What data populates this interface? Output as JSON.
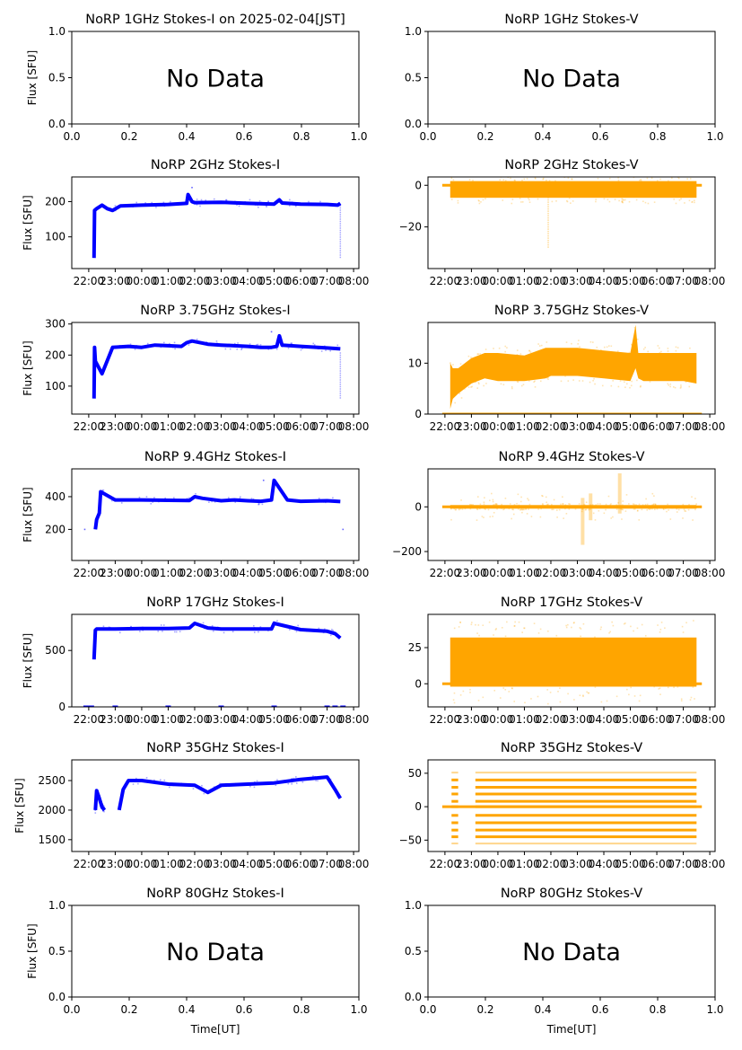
{
  "figure": {
    "title_prefix": "NoRP",
    "date_label": "on 2025-02-04[JST]",
    "ylabel": "Flux [SFU]",
    "xlabel": "Time[UT]",
    "no_data_text": "No Data",
    "colors": {
      "stokes_i": "#0000ff",
      "stokes_v": "#ffa500",
      "axes": "#000000"
    }
  },
  "chart_data": [
    {
      "type": "scatter",
      "id": "1ghz-i",
      "title": "NoRP 1GHz Stokes-I on 2025-02-04[JST]",
      "ylabel": "Flux [SFU]",
      "no_data": true,
      "xlim": [
        0,
        1
      ],
      "ylim": [
        0,
        1
      ],
      "xticks": [
        "0.0",
        "0.2",
        "0.4",
        "0.6",
        "0.8",
        "1.0"
      ],
      "yticks": [
        0,
        0.5,
        1.0
      ],
      "ytick_labels": [
        "0.0",
        "0.5",
        "1.0"
      ]
    },
    {
      "type": "scatter",
      "id": "1ghz-v",
      "title": "NoRP 1GHz Stokes-V",
      "no_data": true,
      "xlim": [
        0,
        1
      ],
      "ylim": [
        0,
        1
      ],
      "xticks": [
        "0.0",
        "0.2",
        "0.4",
        "0.6",
        "0.8",
        "1.0"
      ],
      "yticks": [
        0,
        0.5,
        1.0
      ],
      "ytick_labels": [
        "0.0",
        "0.5",
        "1.0"
      ]
    },
    {
      "type": "scatter",
      "id": "2ghz-i",
      "title": "NoRP 2GHz Stokes-I",
      "ylabel": "Flux [SFU]",
      "stokes": "I",
      "ylim": [
        10,
        270
      ],
      "yticks": [
        100,
        200
      ],
      "ytick_labels": [
        "100",
        "200"
      ],
      "series": [
        {
          "x_hours": [
            22.2,
            22.22,
            22.3,
            22.5,
            22.7,
            22.9,
            23.2,
            24,
            25,
            25.7,
            25.75,
            25.9,
            26,
            27,
            28,
            29,
            29.2,
            29.3,
            30,
            31,
            31.4,
            31.5
          ],
          "y": [
            40,
            175,
            180,
            190,
            180,
            175,
            188,
            190,
            192,
            195,
            220,
            200,
            197,
            198,
            195,
            193,
            205,
            196,
            193,
            192,
            190,
            195
          ]
        }
      ],
      "outliers": [
        {
          "x_hours": 31.5,
          "y_range": [
            40,
            190
          ]
        },
        {
          "x_hours": 25.9,
          "y": 240
        }
      ]
    },
    {
      "type": "scatter",
      "id": "2ghz-v",
      "title": "NoRP 2GHz Stokes-V",
      "stokes": "V",
      "ylim": [
        -40,
        4
      ],
      "yticks": [
        -20,
        0
      ],
      "ytick_labels": [
        "−20",
        "0"
      ],
      "band": {
        "x_start": 22.2,
        "x_end": 31.5,
        "y_low": -6,
        "y_high": 2
      },
      "baseline": {
        "x_start": 21.9,
        "x_end": 31.7,
        "y": 0
      },
      "outliers": [
        {
          "x_hours": 25.9,
          "y_range": [
            -30,
            -6
          ]
        }
      ]
    },
    {
      "type": "scatter",
      "id": "3.75ghz-i",
      "title": "NoRP 3.75GHz Stokes-I",
      "ylabel": "Flux [SFU]",
      "stokes": "I",
      "ylim": [
        10,
        305
      ],
      "yticks": [
        100,
        200,
        300
      ],
      "ytick_labels": [
        "100",
        "200",
        "300"
      ],
      "series": [
        {
          "x_hours": [
            22.2,
            22.22,
            22.25,
            22.5,
            22.9,
            23.5,
            24,
            24.5,
            25,
            25.5,
            25.7,
            25.9,
            26.5,
            27,
            27.5,
            28,
            28.5,
            28.9,
            29.1,
            29.2,
            29.3,
            30,
            31,
            31.5
          ],
          "y": [
            60,
            225,
            180,
            140,
            225,
            228,
            225,
            232,
            230,
            228,
            240,
            245,
            235,
            232,
            230,
            228,
            225,
            225,
            228,
            262,
            232,
            228,
            223,
            220
          ]
        }
      ],
      "outliers": [
        {
          "x_hours": 31.5,
          "y_range": [
            60,
            210
          ]
        },
        {
          "x_hours": 28.9,
          "y": 275
        }
      ]
    },
    {
      "type": "scatter",
      "id": "3.75ghz-v",
      "title": "NoRP 3.75GHz Stokes-V",
      "stokes": "V",
      "ylim": [
        0,
        18
      ],
      "yticks": [
        0,
        10
      ],
      "ytick_labels": [
        "0",
        "10"
      ],
      "band_series": {
        "x_hours": [
          22.2,
          22.3,
          22.5,
          23,
          23.5,
          24,
          25,
          25.8,
          26,
          27,
          28,
          29,
          29.2,
          29.3,
          29.5,
          30,
          31,
          31.5
        ],
        "y_low": [
          1,
          3,
          4,
          6,
          7,
          6.5,
          6.5,
          7,
          7.5,
          7.5,
          7,
          6.5,
          9,
          7,
          6.5,
          6.5,
          6.5,
          6
        ],
        "y_high": [
          10,
          9,
          9,
          11,
          12,
          12,
          11.5,
          13,
          13,
          13,
          12.5,
          12,
          17.5,
          12,
          12,
          12,
          12,
          12
        ]
      },
      "baseline": {
        "x_start": 21.9,
        "x_end": 31.7,
        "y": 0
      }
    },
    {
      "type": "scatter",
      "id": "9.4ghz-i",
      "title": "NoRP 9.4GHz Stokes-I",
      "ylabel": "Flux [SFU]",
      "stokes": "I",
      "ylim": [
        10,
        570
      ],
      "yticks": [
        200,
        400
      ],
      "ytick_labels": [
        "200",
        "400"
      ],
      "series": [
        {
          "x_hours": [
            22.25,
            22.3,
            22.4,
            22.45,
            23,
            24,
            25,
            25.8,
            26,
            26.3,
            27,
            27.5,
            28,
            28.5,
            28.9,
            29,
            29.5,
            30,
            31,
            31.5
          ],
          "y": [
            200,
            260,
            300,
            430,
            380,
            380,
            378,
            376,
            400,
            390,
            375,
            380,
            375,
            372,
            380,
            500,
            380,
            372,
            375,
            370
          ]
        }
      ],
      "outliers": [
        {
          "x_hours": 21.85,
          "y": 200
        },
        {
          "x_hours": 31.6,
          "y": 200
        },
        {
          "x_hours": 28.6,
          "y": 500
        }
      ]
    },
    {
      "type": "scatter",
      "id": "9.4ghz-v",
      "title": "NoRP 9.4GHz Stokes-V",
      "stokes": "V",
      "ylim": [
        -240,
        170
      ],
      "yticks": [
        -200,
        0
      ],
      "ytick_labels": [
        "−200",
        "0"
      ],
      "band": {
        "x_start": 22.2,
        "x_end": 31.5,
        "y_low": -8,
        "y_high": 8
      },
      "baseline": {
        "x_start": 21.9,
        "x_end": 31.7,
        "y": 0
      },
      "bursts": [
        {
          "x_hours": 27.5,
          "y_low": -60,
          "y_high": 60
        },
        {
          "x_hours": 28.6,
          "y_low": -30,
          "y_high": 150
        },
        {
          "x_hours": 27.2,
          "y_low": -170,
          "y_high": 40
        }
      ]
    },
    {
      "type": "scatter",
      "id": "17ghz-i",
      "title": "NoRP 17GHz Stokes-I",
      "ylabel": "Flux [SFU]",
      "stokes": "I",
      "ylim": [
        0,
        820
      ],
      "yticks": [
        0,
        500
      ],
      "ytick_labels": [
        "0",
        "500"
      ],
      "series": [
        {
          "x_hours": [
            22.2,
            22.25,
            22.3,
            23,
            24,
            25,
            25.8,
            26,
            26.5,
            27,
            28,
            28.9,
            29,
            30,
            31,
            31.3,
            31.5
          ],
          "y": [
            420,
            680,
            690,
            690,
            695,
            695,
            700,
            740,
            700,
            690,
            690,
            690,
            740,
            685,
            670,
            650,
            610
          ]
        }
      ],
      "zero_marks_hours": [
        21.9,
        22.1,
        23.0,
        25.0,
        27.0,
        29.0,
        31.0,
        31.3,
        31.6
      ]
    },
    {
      "type": "scatter",
      "id": "17ghz-v",
      "title": "NoRP 17GHz Stokes-V",
      "stokes": "V",
      "ylim": [
        -16,
        48
      ],
      "yticks": [
        0,
        25
      ],
      "ytick_labels": [
        "0",
        "25"
      ],
      "band": {
        "x_start": 22.2,
        "x_end": 31.5,
        "y_low": -2,
        "y_high": 32
      },
      "baseline": {
        "x_start": 21.9,
        "x_end": 31.7,
        "y": 0
      }
    },
    {
      "type": "scatter",
      "id": "35ghz-i",
      "title": "NoRP 35GHz Stokes-I",
      "ylabel": "Flux [SFU]",
      "stokes": "I",
      "ylim": [
        1300,
        2850
      ],
      "yticks": [
        1500,
        2000,
        2500
      ],
      "ytick_labels": [
        "1500",
        "2000",
        "2500"
      ],
      "series": [
        {
          "x_hours": [
            22.25,
            22.3,
            22.4,
            22.5,
            22.6
          ],
          "y": [
            2000,
            2330,
            2200,
            2050,
            2000
          ]
        },
        {
          "x_hours": [
            23.15,
            23.3,
            23.5,
            24,
            25,
            26,
            26.5,
            27,
            28,
            29,
            30,
            31,
            31.3,
            31.5
          ],
          "y": [
            2000,
            2350,
            2500,
            2500,
            2440,
            2420,
            2300,
            2420,
            2440,
            2460,
            2520,
            2560,
            2350,
            2200
          ]
        }
      ]
    },
    {
      "type": "scatter",
      "id": "35ghz-v",
      "title": "NoRP 35GHz Stokes-V",
      "stokes": "V",
      "ylim": [
        -67,
        70
      ],
      "yticks": [
        -50,
        0,
        50
      ],
      "ytick_labels": [
        "−50",
        "0",
        "50"
      ],
      "levels": [
        -55,
        -45,
        -35,
        -24,
        -13,
        0,
        8,
        19,
        29,
        40,
        51
      ],
      "segments": [
        {
          "x_start": 22.25,
          "x_end": 22.5
        },
        {
          "x_start": 23.15,
          "x_end": 31.5
        }
      ],
      "baseline": {
        "x_start": 21.9,
        "x_end": 31.7,
        "y": 0
      }
    },
    {
      "type": "scatter",
      "id": "80ghz-i",
      "title": "NoRP 80GHz Stokes-I",
      "ylabel": "Flux [SFU]",
      "xlabel": "Time[UT]",
      "no_data": true,
      "xlim": [
        0,
        1
      ],
      "ylim": [
        0,
        1
      ],
      "xticks": [
        "0.0",
        "0.2",
        "0.4",
        "0.6",
        "0.8",
        "1.0"
      ],
      "yticks": [
        0,
        0.5,
        1.0
      ],
      "ytick_labels": [
        "0.0",
        "0.5",
        "1.0"
      ]
    },
    {
      "type": "scatter",
      "id": "80ghz-v",
      "title": "NoRP 80GHz Stokes-V",
      "xlabel": "Time[UT]",
      "no_data": true,
      "xlim": [
        0,
        1
      ],
      "ylim": [
        0,
        1
      ],
      "xticks": [
        "0.0",
        "0.2",
        "0.4",
        "0.6",
        "0.8",
        "1.0"
      ],
      "yticks": [
        0,
        0.5,
        1.0
      ],
      "ytick_labels": [
        "0.0",
        "0.5",
        "1.0"
      ]
    }
  ],
  "time_axis": {
    "xlim_hours": [
      21.36,
      32.2
    ],
    "ticks_hours": [
      22,
      23,
      24,
      25,
      26,
      27,
      28,
      29,
      30,
      31,
      32
    ],
    "tick_labels": [
      "22:00",
      "23:00",
      "00:00",
      "01:00",
      "02:00",
      "03:00",
      "04:00",
      "05:00",
      "06:00",
      "07:00",
      "08:00"
    ]
  }
}
